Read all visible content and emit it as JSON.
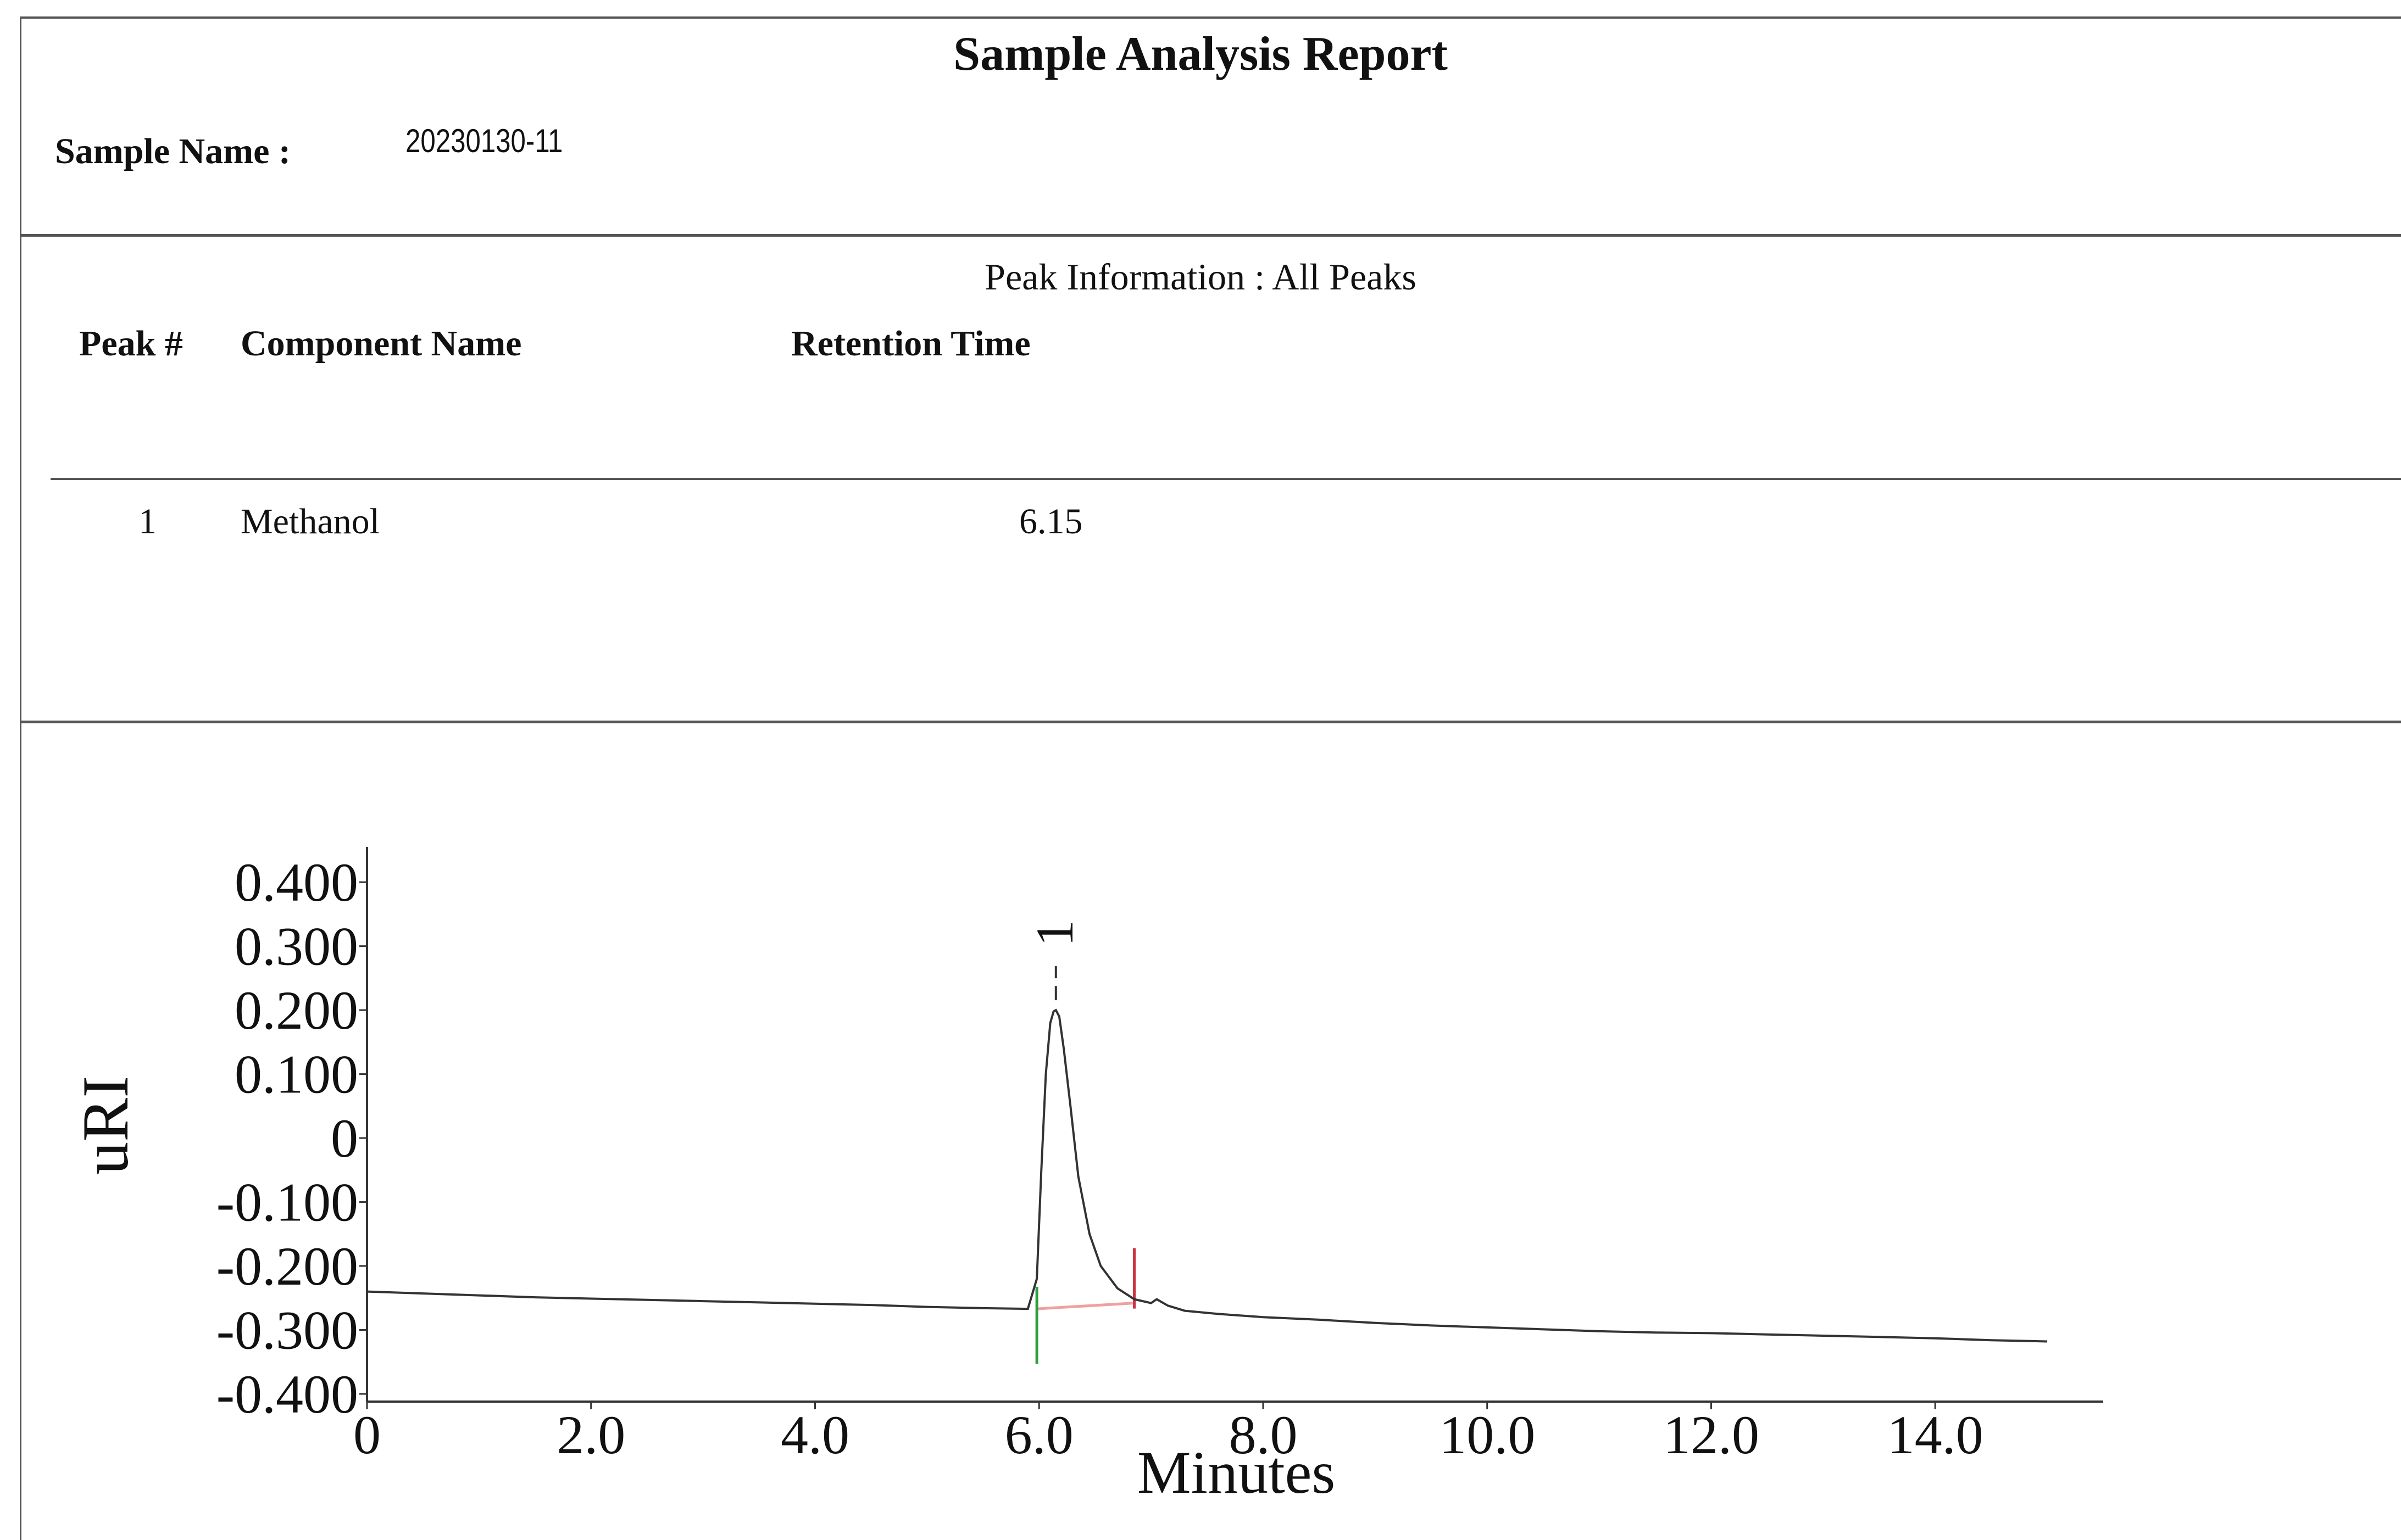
{
  "report": {
    "title": "Sample Analysis Report",
    "sample_name_label": "Sample Name :",
    "sample_name_value": "20230130-11"
  },
  "peak_table": {
    "section_title": "Peak Information : All Peaks",
    "headers": [
      "Peak #",
      "Component Name",
      "Retention Time"
    ],
    "rows": [
      {
        "peak": "1",
        "component": "Methanol",
        "retention_time": "6.15"
      }
    ]
  },
  "chart_data": {
    "type": "line",
    "xlabel": "Minutes",
    "ylabel": "uRI",
    "xlim": [
      0,
      15.5
    ],
    "ylim": [
      -0.4,
      0.45
    ],
    "x_ticks": [
      "0",
      "2.0",
      "4.0",
      "6.0",
      "8.0",
      "10.0",
      "12.0",
      "14.0"
    ],
    "x_tick_values": [
      0,
      2,
      4,
      6,
      8,
      10,
      12,
      14
    ],
    "y_ticks": [
      "0.400",
      "0.300",
      "0.200",
      "0.100",
      "0",
      "-0.100",
      "-0.200",
      "-0.300",
      "-0.400"
    ],
    "y_tick_values": [
      0.4,
      0.3,
      0.2,
      0.1,
      0,
      -0.1,
      -0.2,
      -0.3,
      -0.4
    ],
    "series": [
      {
        "x": [
          0,
          0.5,
          1,
          1.5,
          2,
          2.5,
          3,
          3.5,
          4,
          4.5,
          5,
          5.5,
          5.9,
          5.98,
          6.02,
          6.06,
          6.1,
          6.13,
          6.15,
          6.18,
          6.22,
          6.28,
          6.35,
          6.45,
          6.55,
          6.7,
          6.85,
          7.0,
          7.05,
          7.15,
          7.3,
          7.6,
          8.0,
          8.5,
          9.0,
          9.5,
          10,
          10.5,
          11,
          11.5,
          12,
          12.5,
          13,
          13.5,
          14,
          14.5,
          15
        ],
        "y": [
          -0.24,
          -0.243,
          -0.246,
          -0.249,
          -0.251,
          -0.253,
          -0.255,
          -0.257,
          -0.259,
          -0.261,
          -0.264,
          -0.266,
          -0.267,
          -0.22,
          -0.05,
          0.1,
          0.18,
          0.198,
          0.2,
          0.19,
          0.14,
          0.05,
          -0.06,
          -0.15,
          -0.2,
          -0.235,
          -0.252,
          -0.258,
          -0.252,
          -0.262,
          -0.27,
          -0.275,
          -0.28,
          -0.284,
          -0.289,
          -0.293,
          -0.296,
          -0.299,
          -0.302,
          -0.304,
          -0.305,
          -0.307,
          -0.309,
          -0.311,
          -0.313,
          -0.316,
          -0.318
        ],
        "color": "#333333"
      }
    ],
    "annotations": [
      {
        "label": "1",
        "x": 6.15,
        "y": 0.2
      }
    ],
    "integration": {
      "start": {
        "x": 5.98,
        "y": -0.267,
        "color": "#2e9e3e"
      },
      "end": {
        "x": 6.85,
        "y": -0.258,
        "color": "#cc3344"
      },
      "baseline_color": "#f0a0a0"
    }
  }
}
